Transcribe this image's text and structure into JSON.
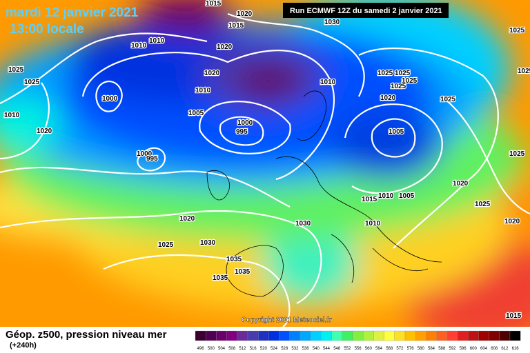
{
  "header": {
    "date": "mardi 12 janvier 2021",
    "time": "13:00 locale",
    "run": "Run ECMWF 12Z du samedi 2 janvier 2021"
  },
  "copyright": "Copyright 2021 Meteociel.fr",
  "footer": {
    "title": "Géop. z500, pression niveau mer",
    "lead": "(+240h)"
  },
  "isobar_labels": [
    1015,
    1020,
    1015,
    1030,
    1025,
    1010,
    1010,
    1020,
    1025,
    1025,
    1020,
    1010,
    1010,
    1025,
    1025,
    1025,
    1025,
    1025,
    1000,
    1020,
    1025,
    1010,
    1005,
    1000,
    995,
    1005,
    1020,
    1000,
    995,
    1025,
    1020,
    1010,
    1005,
    1015,
    1025,
    1020,
    1030,
    1010,
    1020,
    1025,
    1030,
    1035,
    1035,
    1035,
    1015
  ],
  "colorbar": {
    "labels": [
      496,
      500,
      504,
      508,
      512,
      516,
      520,
      524,
      528,
      532,
      536,
      540,
      544,
      548,
      552,
      556,
      560,
      564,
      568,
      572,
      576,
      580,
      584,
      588,
      592,
      596,
      600,
      604,
      608,
      612,
      616
    ],
    "colors": [
      "#3a0030",
      "#500050",
      "#6a006a",
      "#800080",
      "#6a2a9a",
      "#4a3ab0",
      "#2030c0",
      "#0030e0",
      "#0050ff",
      "#0080ff",
      "#00a8ff",
      "#00d0ff",
      "#00f0f0",
      "#40ffb0",
      "#40f060",
      "#80f040",
      "#b0f040",
      "#e0f040",
      "#ffff40",
      "#ffe020",
      "#ffc000",
      "#ffa000",
      "#ff8000",
      "#ff6020",
      "#ff4030",
      "#e02020",
      "#c01010",
      "#a00000",
      "#800000",
      "#500000",
      "#000000"
    ]
  }
}
